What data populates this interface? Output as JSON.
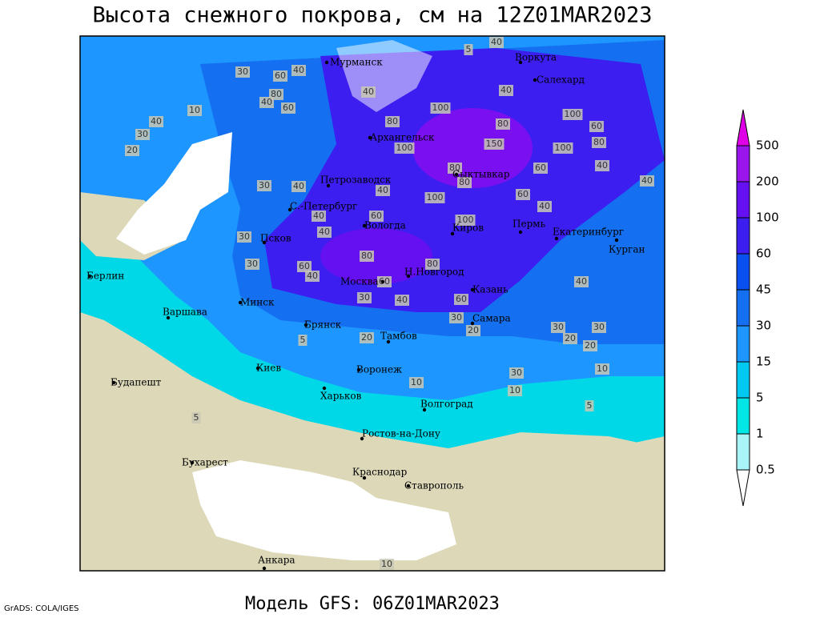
{
  "title": "Высота снежного покрова, см на 12Z01MAR2023",
  "footer": "Модель GFS: 06Z01MAR2023",
  "credit": "GrADS: COLA/IGES",
  "cities": [
    "Мурманск",
    "Воркута",
    "Салехард",
    "Архангельск",
    "Сыктывкар",
    "Петрозаводск",
    "С.-Петербург",
    "Вологда",
    "Киров",
    "Пермь",
    "Екатеринбург",
    "Курган",
    "Псков",
    "Берлин",
    "Москва",
    "Н.Новгород",
    "Казань",
    "Минск",
    "Варшава",
    "Самара",
    "Брянск",
    "Тамбов",
    "Воронеж",
    "Киев",
    "Будапешт",
    "Харьков",
    "Волгоград",
    "Ростов-на-Дону",
    "Бухарест",
    "Краснодар",
    "Ставрополь",
    "Анкара"
  ],
  "contour_labels": [
    40,
    5,
    30,
    60,
    40,
    40,
    80,
    40,
    60,
    10,
    40,
    30,
    20,
    80,
    100,
    40,
    100,
    60,
    80,
    150,
    100,
    80,
    100,
    80,
    60,
    40,
    40,
    40,
    80,
    30,
    40,
    100,
    60,
    40,
    60,
    40,
    100,
    30,
    40,
    80,
    30,
    60,
    40,
    80,
    60,
    40,
    30,
    40,
    60,
    30,
    20,
    30,
    30,
    20,
    20,
    20,
    5,
    10,
    30,
    10,
    10,
    5,
    5,
    10
  ],
  "legend": {
    "levels": [
      0.5,
      1,
      5,
      15,
      30,
      45,
      60,
      100,
      200,
      500
    ],
    "colors": [
      "#ffffff",
      "#a8f4f8",
      "#00e6e6",
      "#00c8f0",
      "#1e96ff",
      "#1470f0",
      "#0a50f0",
      "#3c1ef0",
      "#6410f0",
      "#9a14ec",
      "#e000e8"
    ]
  }
}
